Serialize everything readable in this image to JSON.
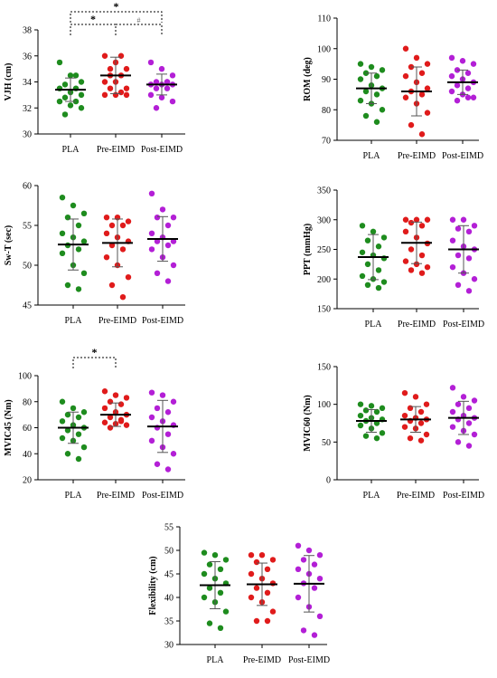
{
  "colors": {
    "PLA": "#1e8c1e",
    "Pre-EIMD": "#e01b1b",
    "Post-EIMD": "#b31fd6"
  },
  "chart_data": [
    {
      "type": "scatter",
      "ylabel": "VJH (cm)",
      "ylim": [
        30,
        38
      ],
      "yticks": [
        30,
        32,
        34,
        36,
        38
      ],
      "categories": [
        "PLA",
        "Pre-EIMD",
        "Post-EIMD"
      ],
      "series": [
        {
          "values": [
            35.5,
            34.5,
            34.0,
            33.8,
            33.5,
            33.5,
            33.2,
            33.0,
            32.8,
            32.5,
            32.5,
            32.2,
            32.0,
            31.5,
            34.5
          ],
          "mean": 33.4,
          "sd": 0.9
        },
        {
          "values": [
            36.0,
            35.5,
            35.0,
            34.5,
            34.5,
            34.0,
            34.0,
            33.5,
            33.5,
            33.2,
            33.0,
            33.0,
            33.0,
            35.0,
            36.0
          ],
          "mean": 34.5,
          "sd": 1.4
        },
        {
          "values": [
            35.5,
            35.0,
            34.5,
            34.0,
            34.0,
            33.8,
            33.8,
            33.8,
            33.5,
            33.5,
            33.0,
            32.8,
            32.5,
            32.0,
            34.0
          ],
          "mean": 33.8,
          "sd": 0.8
        }
      ],
      "annotations": [
        {
          "from": 0,
          "to": 2,
          "label": "*",
          "level": 1
        },
        {
          "from": 0,
          "to": 1,
          "label": "*",
          "level": 2
        },
        {
          "from": 1,
          "to": 2,
          "label": "#",
          "level": 2
        }
      ]
    },
    {
      "type": "scatter",
      "ylabel": "ROM (deg)",
      "ylim": [
        70,
        110
      ],
      "yticks": [
        70,
        80,
        90,
        100,
        110
      ],
      "categories": [
        "PLA",
        "Pre-EIMD",
        "Post-EIMD"
      ],
      "series": [
        {
          "values": [
            95,
            94,
            93,
            92,
            91,
            90,
            88,
            87,
            86,
            85,
            83,
            82,
            80,
            78,
            76
          ],
          "mean": 87,
          "sd": 5
        },
        {
          "values": [
            100,
            97,
            95,
            94,
            92,
            91,
            89,
            87,
            86,
            85,
            84,
            82,
            79,
            75,
            72
          ],
          "mean": 86,
          "sd": 8
        },
        {
          "values": [
            97,
            96,
            95,
            93,
            92,
            91,
            90,
            89,
            88,
            87,
            86,
            85,
            84,
            83,
            84
          ],
          "mean": 89,
          "sd": 4
        }
      ],
      "annotations": []
    },
    {
      "type": "scatter",
      "ylabel": "Sw-T (sec)",
      "ylim": [
        45,
        60
      ],
      "yticks": [
        45,
        50,
        55,
        60
      ],
      "categories": [
        "PLA",
        "Pre-EIMD",
        "Post-EIMD"
      ],
      "series": [
        {
          "values": [
            58.5,
            57.5,
            56.5,
            56,
            55,
            54,
            53.5,
            53,
            52.5,
            52,
            51.5,
            50,
            49,
            47.5,
            47
          ],
          "mean": 52.6,
          "sd": 3.2
        },
        {
          "values": [
            56,
            56,
            55.5,
            55,
            55,
            54,
            53.5,
            53,
            52.5,
            52,
            51,
            50,
            48.5,
            47.5,
            46
          ],
          "mean": 52.8,
          "sd": 3.0
        },
        {
          "values": [
            59,
            57,
            56,
            56,
            55,
            54,
            53.5,
            53,
            53,
            52.5,
            52,
            51,
            50,
            49,
            48
          ],
          "mean": 53.3,
          "sd": 2.8
        }
      ],
      "annotations": []
    },
    {
      "type": "scatter",
      "ylabel": "PPT (mmHg)",
      "ylim": [
        150,
        350
      ],
      "yticks": [
        150,
        200,
        250,
        300,
        350
      ],
      "categories": [
        "PLA",
        "Pre-EIMD",
        "Post-EIMD"
      ],
      "series": [
        {
          "values": [
            290,
            280,
            270,
            265,
            255,
            245,
            240,
            235,
            225,
            215,
            205,
            200,
            195,
            190,
            185
          ],
          "mean": 237,
          "sd": 38
        },
        {
          "values": [
            300,
            300,
            300,
            295,
            290,
            280,
            270,
            260,
            250,
            240,
            230,
            225,
            220,
            215,
            210
          ],
          "mean": 261,
          "sd": 35
        },
        {
          "values": [
            300,
            300,
            290,
            285,
            280,
            265,
            255,
            250,
            240,
            235,
            220,
            210,
            200,
            190,
            180
          ],
          "mean": 250,
          "sd": 40
        }
      ],
      "annotations": []
    },
    {
      "type": "scatter",
      "ylabel": "MVIC45 (Nm)",
      "ylim": [
        20,
        100
      ],
      "yticks": [
        20,
        40,
        60,
        80,
        100
      ],
      "categories": [
        "PLA",
        "Pre-EIMD",
        "Post-EIMD"
      ],
      "series": [
        {
          "values": [
            80,
            75,
            72,
            70,
            68,
            65,
            62,
            60,
            58,
            55,
            52,
            50,
            45,
            40,
            36
          ],
          "mean": 60,
          "sd": 12
        },
        {
          "values": [
            88,
            85,
            83,
            80,
            78,
            75,
            72,
            70,
            68,
            66,
            64,
            63,
            62,
            60,
            65
          ],
          "mean": 70,
          "sd": 9
        },
        {
          "values": [
            87,
            85,
            80,
            75,
            72,
            68,
            65,
            62,
            60,
            55,
            50,
            45,
            40,
            32,
            28
          ],
          "mean": 61,
          "sd": 20
        }
      ],
      "annotations": [
        {
          "from": 0,
          "to": 1,
          "label": "*",
          "level": 1
        }
      ]
    },
    {
      "type": "scatter",
      "ylabel": "MVIC60 (Nm)",
      "ylim": [
        0,
        150
      ],
      "yticks": [
        0,
        50,
        100,
        150
      ],
      "categories": [
        "PLA",
        "Pre-EIMD",
        "Post-EIMD"
      ],
      "series": [
        {
          "values": [
            100,
            98,
            95,
            92,
            90,
            85,
            82,
            80,
            78,
            75,
            72,
            68,
            62,
            58,
            55
          ],
          "mean": 78,
          "sd": 15
        },
        {
          "values": [
            115,
            110,
            100,
            95,
            90,
            85,
            82,
            80,
            78,
            75,
            70,
            68,
            60,
            55,
            52
          ],
          "mean": 80,
          "sd": 17
        },
        {
          "values": [
            122,
            110,
            105,
            100,
            95,
            90,
            85,
            82,
            80,
            75,
            70,
            65,
            60,
            50,
            45
          ],
          "mean": 82,
          "sd": 22
        }
      ],
      "annotations": []
    },
    {
      "type": "scatter",
      "ylabel": "Flexibility (cm)",
      "ylim": [
        30,
        55
      ],
      "yticks": [
        30,
        35,
        40,
        45,
        50,
        55
      ],
      "categories": [
        "PLA",
        "Pre-EIMD",
        "Post-EIMD"
      ],
      "series": [
        {
          "values": [
            49.5,
            49,
            48,
            47,
            46,
            45,
            44,
            43,
            42,
            41,
            40,
            39,
            37,
            34.5,
            33.5
          ],
          "mean": 42.6,
          "sd": 5
        },
        {
          "values": [
            49,
            49,
            48,
            47.5,
            46,
            45,
            44,
            43,
            42,
            41,
            40,
            39,
            37,
            35,
            35
          ],
          "mean": 42.8,
          "sd": 4.5
        },
        {
          "values": [
            51,
            50,
            49,
            48,
            47,
            46,
            45,
            44,
            43,
            42,
            40,
            38,
            36,
            33,
            32
          ],
          "mean": 42.9,
          "sd": 6
        }
      ],
      "annotations": []
    }
  ]
}
